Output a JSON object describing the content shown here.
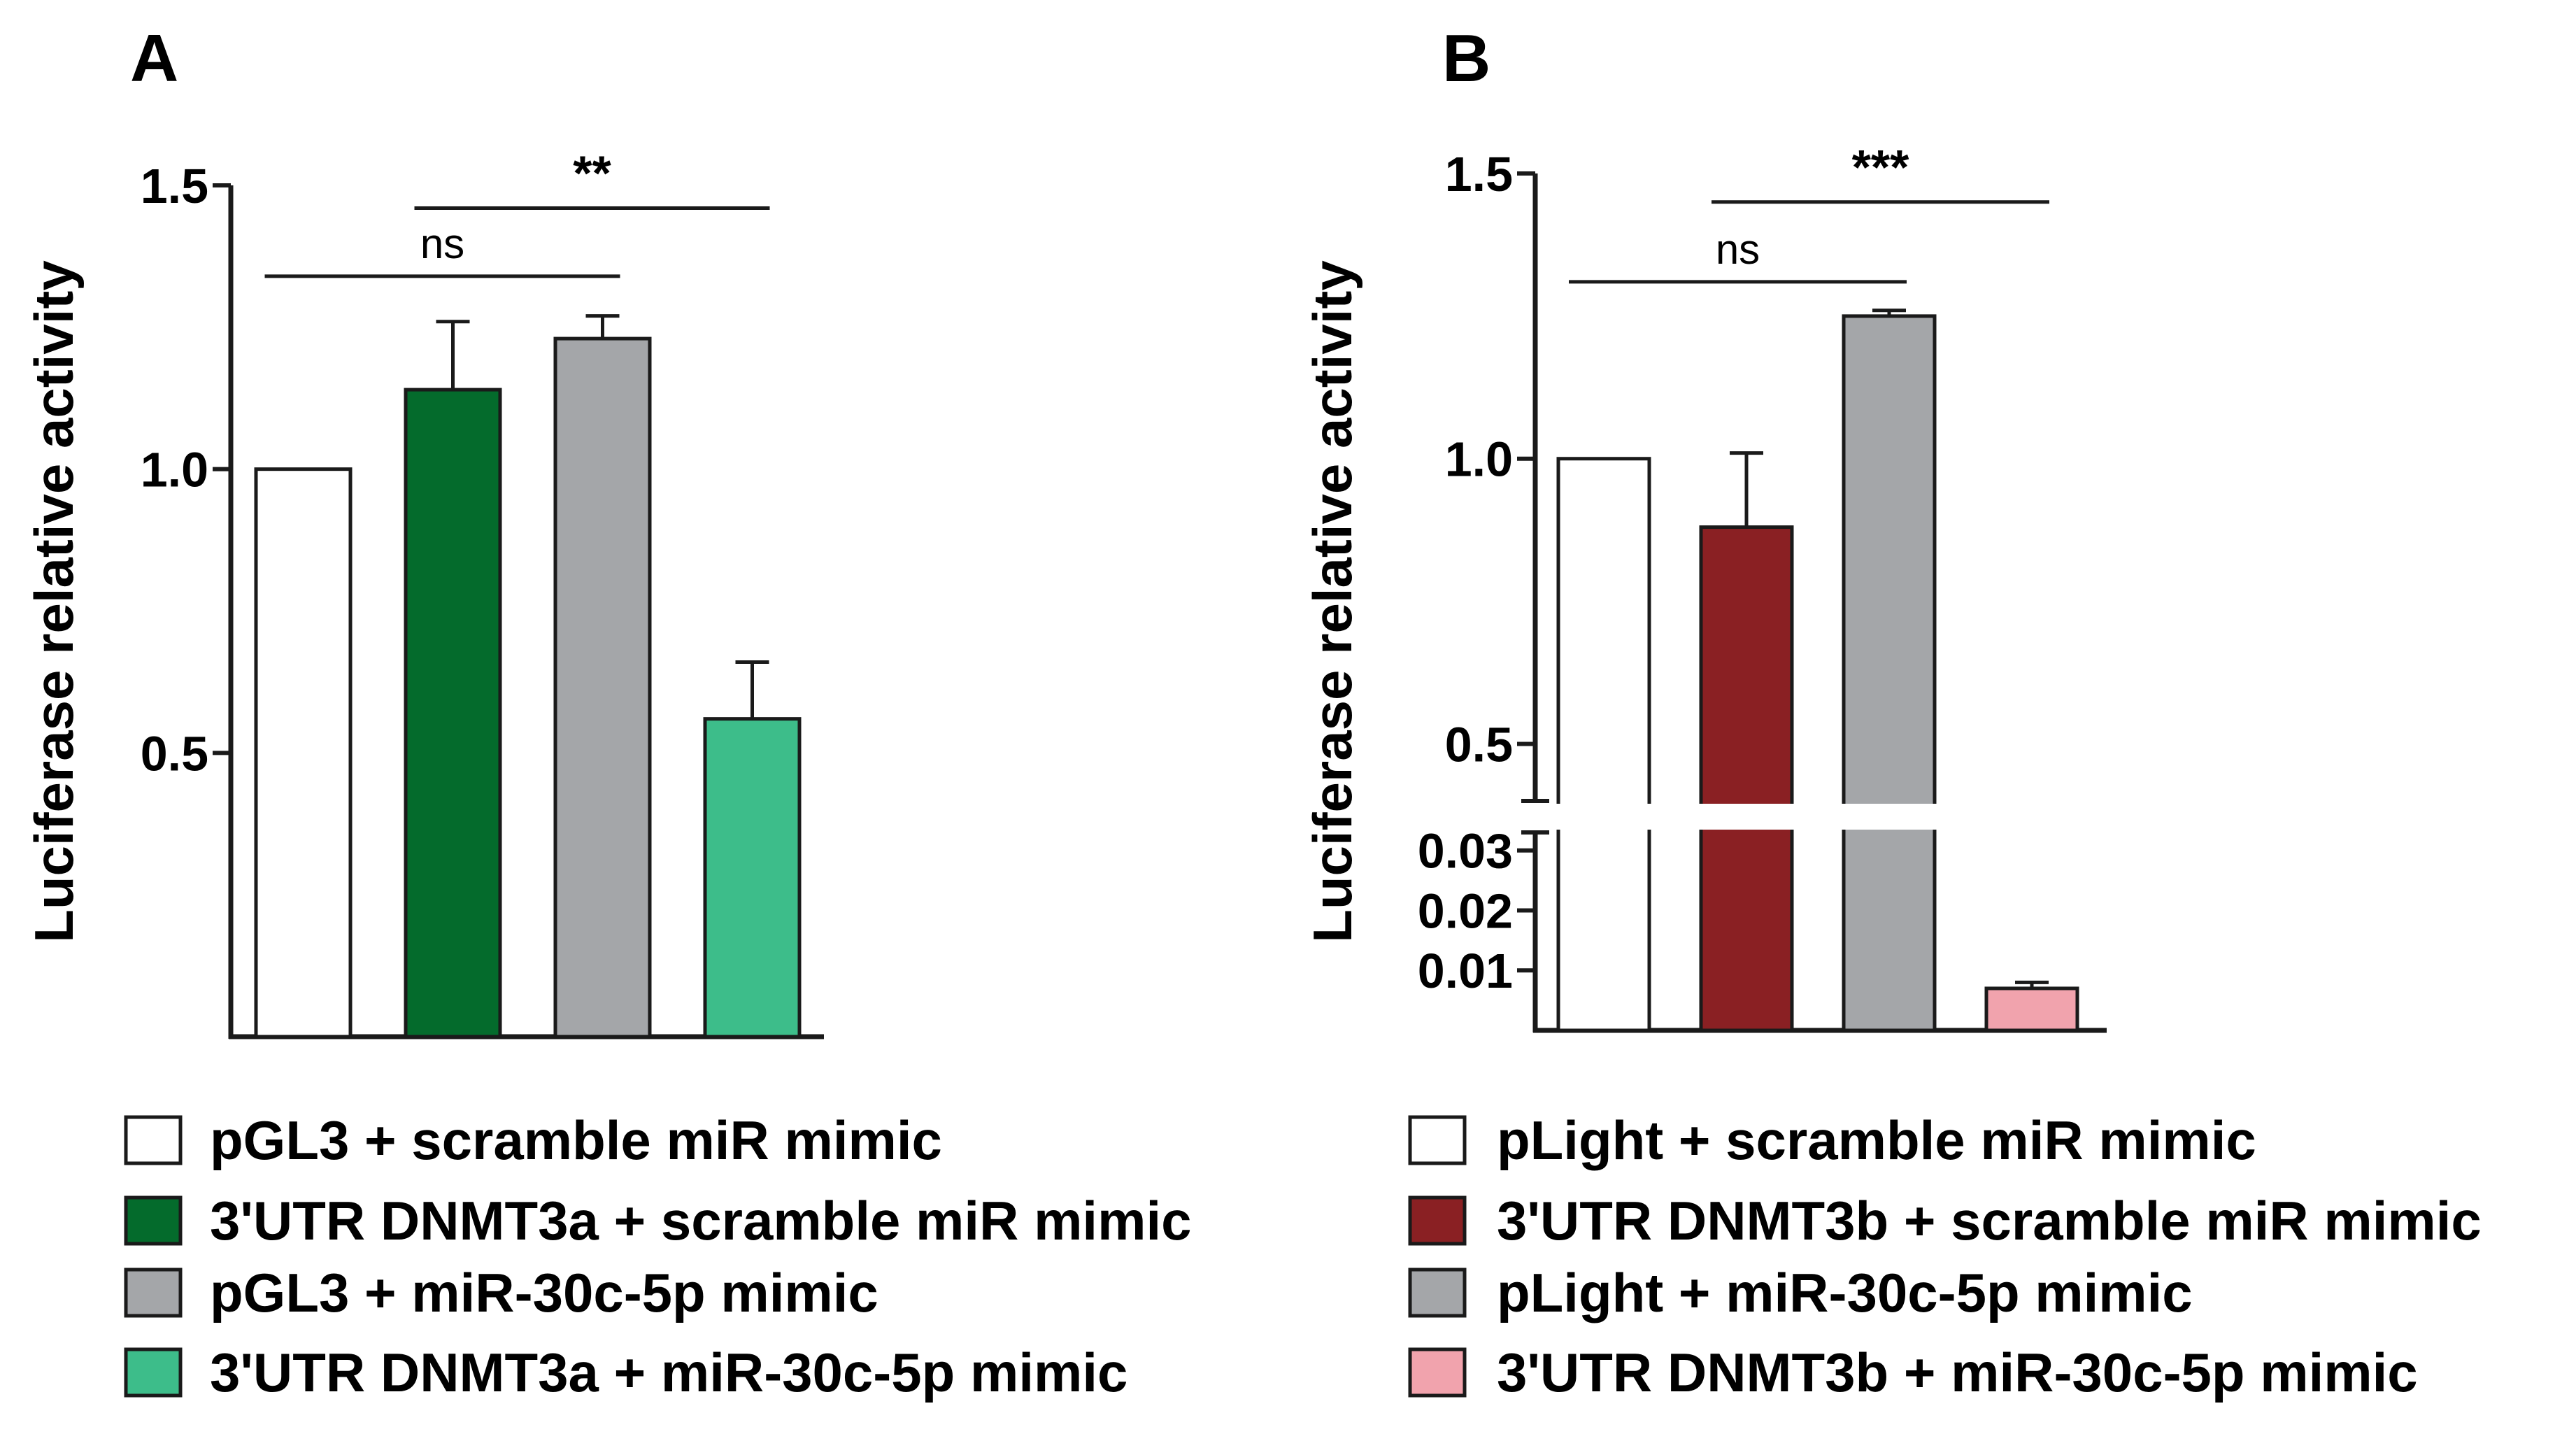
{
  "chart_data": [
    {
      "panel": "A",
      "type": "bar",
      "ylabel": "Luciferase relative activity",
      "ylim": [
        0,
        1.5
      ],
      "yticks": [
        "0.5",
        "1.0",
        "1.5"
      ],
      "categories": [
        "pGL3 + scramble miR mimic",
        "3'UTR DNMT3a + scramble miR mimic",
        "pGL3 + miR-30c-5p mimic",
        "3'UTR DNMT3a + miR-30c-5p mimic"
      ],
      "values": [
        1.0,
        1.14,
        1.23,
        0.56
      ],
      "errors": [
        0.0,
        0.12,
        0.04,
        0.1
      ],
      "colors": [
        "#ffffff",
        "#046b2c",
        "#a4a6a9",
        "#3dbd8a"
      ],
      "annotations": [
        {
          "label": "ns",
          "from": 0,
          "to": 2,
          "y": 1.34
        },
        {
          "label": "**",
          "from": 1,
          "to": 3,
          "y": 1.46
        }
      ]
    },
    {
      "panel": "B",
      "type": "bar",
      "ylabel": "Luciferase relative activity",
      "axis_break": true,
      "lower_ylim": [
        0,
        0.033
      ],
      "upper_ylim": [
        0.4,
        1.5
      ],
      "lower_ticks": [
        "0.01",
        "0.02",
        "0.03"
      ],
      "upper_ticks": [
        "0.5",
        "1.0",
        "1.5"
      ],
      "categories": [
        "pLight + scramble miR mimic",
        "3'UTR DNMT3b + scramble miR mimic",
        "pLight + miR-30c-5p mimic",
        "3'UTR DNMT3b + miR-30c-5p mimic"
      ],
      "values": [
        1.0,
        0.88,
        1.25,
        0.007
      ],
      "errors": [
        0.0,
        0.13,
        0.01,
        0.001
      ],
      "colors": [
        "#ffffff",
        "#8a2023",
        "#a4a6a9",
        "#f1a3ad"
      ],
      "annotations": [
        {
          "label": "ns",
          "from": 0,
          "to": 2,
          "y": 1.31
        },
        {
          "label": "***",
          "from": 1,
          "to": 3,
          "y": 1.45
        }
      ]
    }
  ]
}
